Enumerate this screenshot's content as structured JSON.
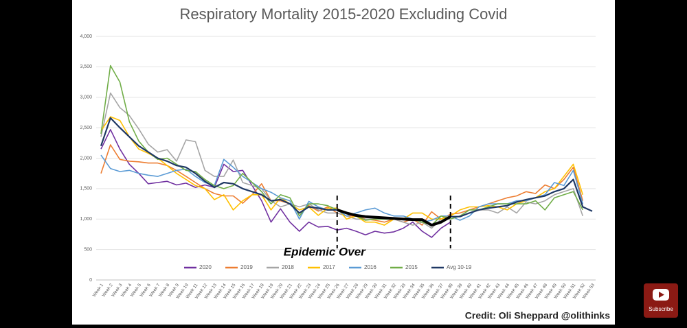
{
  "chart_data": {
    "type": "line",
    "title": "Respiratory Mortality 2015-2020 Excluding Covid",
    "categories": [
      "Week 1",
      "Week 2",
      "Week 3",
      "Week 4",
      "Week 5",
      "Week 6",
      "Week 7",
      "Week 8",
      "Week 9",
      "Week 10",
      "Week 11",
      "Week 12",
      "Week 13",
      "Week 14",
      "Week 15",
      "Week 16",
      "Week 17",
      "Week 18",
      "Week 19",
      "Week 20",
      "Week 21",
      "Week 22",
      "Week 23",
      "Week 24",
      "Week 25",
      "Week 26",
      "Week 27",
      "Week 28",
      "Week 29",
      "Week 30",
      "Week 31",
      "Week 32",
      "Week 33",
      "Week 34",
      "Week 35",
      "Week 36",
      "Week 37",
      "Week 38",
      "Week 39",
      "Week 40",
      "Week 41",
      "Week 42",
      "Week 43",
      "Week 44",
      "Week 45",
      "Week 46",
      "Week 47",
      "Week 48",
      "Week 49",
      "Week 50",
      "Week 51",
      "Week 52",
      "Week 53"
    ],
    "series": [
      {
        "name": "2020",
        "color": "#7030a0",
        "values": [
          2150,
          2470,
          2150,
          1900,
          1750,
          1580,
          1600,
          1620,
          1560,
          1590,
          1520,
          1560,
          1520,
          1900,
          1780,
          1800,
          1550,
          1300,
          950,
          1170,
          950,
          800,
          950,
          870,
          880,
          820,
          850,
          800,
          740,
          800,
          770,
          790,
          850,
          950,
          800,
          700,
          850,
          950,
          null,
          null,
          null,
          null,
          null,
          null,
          null,
          null,
          null,
          null,
          null,
          null,
          null,
          null,
          null
        ]
      },
      {
        "name": "2019",
        "color": "#ed7d31",
        "values": [
          1750,
          2220,
          1980,
          1950,
          1940,
          1920,
          1920,
          1880,
          1800,
          1700,
          1600,
          1500,
          1420,
          1380,
          1380,
          1260,
          1400,
          1580,
          1300,
          1300,
          1250,
          1100,
          1220,
          1130,
          1200,
          1100,
          1050,
          1050,
          1000,
          980,
          950,
          1000,
          950,
          1000,
          900,
          1120,
          1000,
          1080,
          1100,
          1150,
          1200,
          1250,
          1300,
          1350,
          1380,
          1450,
          1420,
          1560,
          1500,
          1650,
          1850,
          1300,
          null
        ]
      },
      {
        "name": "2018",
        "color": "#a5a5a5",
        "values": [
          2350,
          3070,
          2830,
          2700,
          2480,
          2230,
          2100,
          2140,
          1950,
          2300,
          2270,
          1800,
          1700,
          1700,
          1970,
          1600,
          1550,
          1500,
          1300,
          1200,
          1250,
          1200,
          1250,
          1150,
          1100,
          1100,
          1050,
          1000,
          1000,
          1000,
          1000,
          1000,
          950,
          900,
          950,
          850,
          1000,
          1000,
          1050,
          1100,
          1150,
          1150,
          1100,
          1200,
          1100,
          1280,
          1250,
          1300,
          1400,
          1450,
          1500,
          1050,
          null
        ]
      },
      {
        "name": "2017",
        "color": "#ffc000",
        "values": [
          2450,
          2680,
          2620,
          2350,
          2150,
          2080,
          2000,
          1880,
          1750,
          1650,
          1550,
          1500,
          1320,
          1400,
          1150,
          1300,
          1400,
          1400,
          1150,
          1350,
          1250,
          1150,
          1200,
          1060,
          1180,
          1180,
          1000,
          1050,
          950,
          950,
          900,
          1000,
          1000,
          1100,
          1100,
          1000,
          1000,
          1050,
          1150,
          1200,
          1200,
          1220,
          1200,
          1150,
          1250,
          1300,
          1350,
          1450,
          1500,
          1700,
          1900,
          1400,
          null
        ]
      },
      {
        "name": "2016",
        "color": "#5b9bd5",
        "values": [
          2050,
          1830,
          1780,
          1800,
          1750,
          1720,
          1700,
          1750,
          1800,
          1820,
          1700,
          1600,
          1550,
          1980,
          1850,
          1700,
          1600,
          1500,
          1440,
          1350,
          1300,
          1000,
          1290,
          1200,
          1150,
          1150,
          1050,
          1100,
          1150,
          1180,
          1100,
          1050,
          1050,
          1000,
          950,
          980,
          1050,
          1050,
          980,
          1050,
          1200,
          1250,
          1250,
          1250,
          1300,
          1300,
          1350,
          1400,
          1600,
          1550,
          1800,
          1250,
          null
        ]
      },
      {
        "name": "2015",
        "color": "#70ad47",
        "values": [
          2400,
          3520,
          3250,
          2600,
          2280,
          2100,
          1980,
          2000,
          1900,
          1800,
          1780,
          1650,
          1550,
          1500,
          1550,
          1750,
          1600,
          1450,
          1250,
          1400,
          1350,
          1050,
          1250,
          1250,
          1220,
          1150,
          1100,
          1050,
          980,
          1000,
          1000,
          1000,
          1000,
          1000,
          950,
          900,
          1050,
          1000,
          1050,
          1150,
          1150,
          1200,
          1250,
          1250,
          1250,
          1250,
          1300,
          1150,
          1350,
          1400,
          1450,
          1150,
          null
        ]
      },
      {
        "name": "Avg 10-19",
        "color": "#1f3864",
        "values": [
          2200,
          2660,
          2500,
          2350,
          2200,
          2100,
          2000,
          1950,
          1880,
          1850,
          1750,
          1620,
          1520,
          1600,
          1580,
          1500,
          1450,
          1400,
          1300,
          1320,
          1250,
          1100,
          1200,
          1180,
          1150,
          1150,
          1100,
          1060,
          1040,
          1030,
          1020,
          1010,
          1000,
          990,
          990,
          900,
          950,
          1040,
          1040,
          1100,
          1150,
          1180,
          1200,
          1220,
          1280,
          1320,
          1350,
          1380,
          1450,
          1500,
          1650,
          1200,
          1130
        ]
      }
    ],
    "ylim": [
      0,
      4000
    ],
    "yticks": [
      0,
      500,
      {
        "value": 1000,
        "label": "1,000"
      },
      {
        "value": 1500,
        "label": "1,500"
      },
      {
        "value": 2000,
        "label": "2,000"
      },
      {
        "value": 2500,
        "label": "2,500"
      },
      {
        "value": 3000,
        "label": "3,000"
      },
      {
        "value": 3500,
        "label": "3,500"
      },
      {
        "value": 4000,
        "label": "4,000"
      }
    ],
    "grid": true,
    "legend": "bottom",
    "annotation": {
      "text": "Epidemic Over",
      "from": "Week 26",
      "to": "Week 38",
      "color": "#000000"
    }
  },
  "credit": "Credit: Oli Sheppard @olithinks",
  "subscribe": "Subscribe"
}
